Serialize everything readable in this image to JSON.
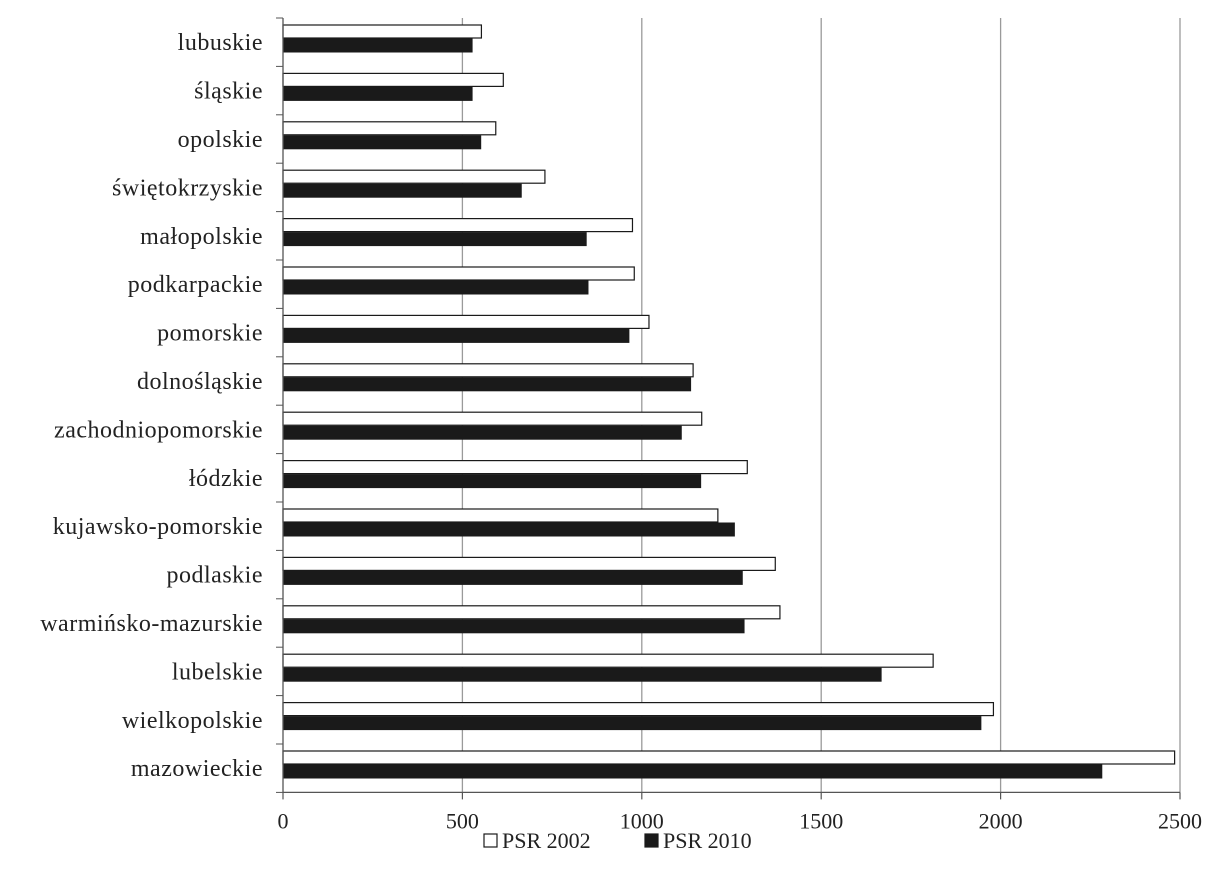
{
  "chart_data": {
    "type": "bar",
    "orientation": "horizontal",
    "title": "",
    "xlabel": "",
    "ylabel": "",
    "categories": [
      "lubuskie",
      "śląskie",
      "opolskie",
      "świętokrzyskie",
      "małopolskie",
      "podkarpackie",
      "pomorskie",
      "dolnośląskie",
      "zachodniopomorskie",
      "łódzkie",
      "kujawsko-pomorskie",
      "podlaskie",
      "warmińsko-mazurskie",
      "lubelskie",
      "wielkopolskie",
      "mazowieckie"
    ],
    "series": [
      {
        "name": "PSR 2002",
        "color": "#ffffff",
        "values": [
          553,
          614,
          593,
          730,
          974,
          979,
          1020,
          1143,
          1167,
          1294,
          1212,
          1372,
          1385,
          1812,
          1980,
          2485
        ]
      },
      {
        "name": "PSR 2010",
        "color": "#1a1a1a",
        "values": [
          527,
          527,
          551,
          664,
          845,
          850,
          964,
          1136,
          1110,
          1164,
          1258,
          1280,
          1285,
          1667,
          1945,
          2282
        ]
      }
    ],
    "xlim": [
      0,
      2500
    ],
    "xticks": [
      "0",
      "500",
      "1000",
      "1500",
      "2000",
      "2500"
    ],
    "grid": true,
    "legend": {
      "position": "bottom",
      "entries": [
        "PSR 2002",
        "PSR 2010"
      ]
    }
  }
}
